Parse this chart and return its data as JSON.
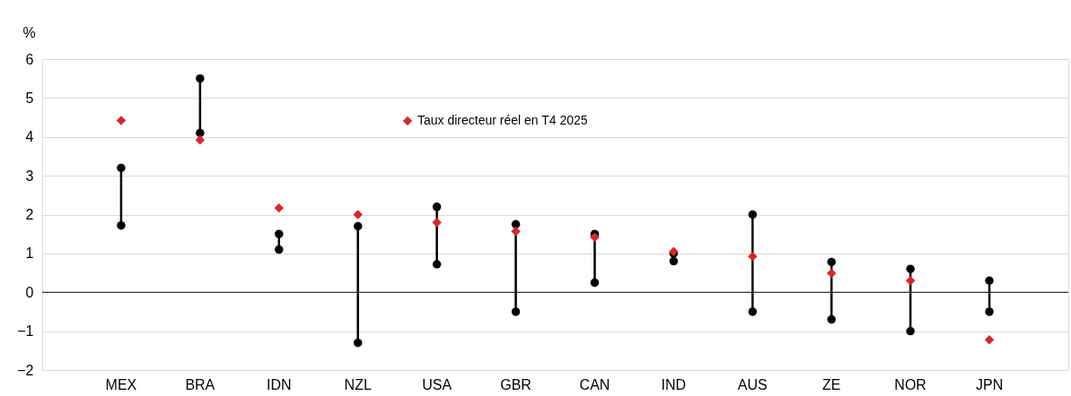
{
  "chart_data": {
    "type": "scatter",
    "ylabel": "%",
    "categories": [
      "MEX",
      "BRA",
      "IDN",
      "NZL",
      "USA",
      "GBR",
      "CAN",
      "IND",
      "AUS",
      "ZE",
      "NOR",
      "JPN"
    ],
    "series": [
      {
        "color": "#000000",
        "marker": "circle",
        "values": [
          3.2,
          5.5,
          1.5,
          1.7,
          2.2,
          1.75,
          1.5,
          1.0,
          2.0,
          0.78,
          0.6,
          0.3
        ]
      },
      {
        "color": "#000000",
        "marker": "circle",
        "values": [
          1.72,
          4.1,
          1.1,
          -1.3,
          0.72,
          -0.5,
          0.25,
          0.8,
          -0.5,
          -0.7,
          -1.0,
          -0.5
        ]
      },
      {
        "name": "Taux directeur réel en T4 2025",
        "color": "#d9262e",
        "marker": "diamond",
        "values": [
          4.42,
          3.92,
          2.17,
          2.0,
          1.8,
          1.57,
          1.42,
          1.05,
          0.92,
          0.49,
          0.3,
          -1.22
        ]
      }
    ],
    "ylim": [
      -2,
      6
    ],
    "yticks": [
      -2,
      -1,
      0,
      1,
      2,
      3,
      4,
      5,
      6
    ],
    "ref_lines": [
      {
        "axis": "y",
        "value": 0,
        "color": "#000000"
      }
    ],
    "grid": "y",
    "legend": "top"
  }
}
